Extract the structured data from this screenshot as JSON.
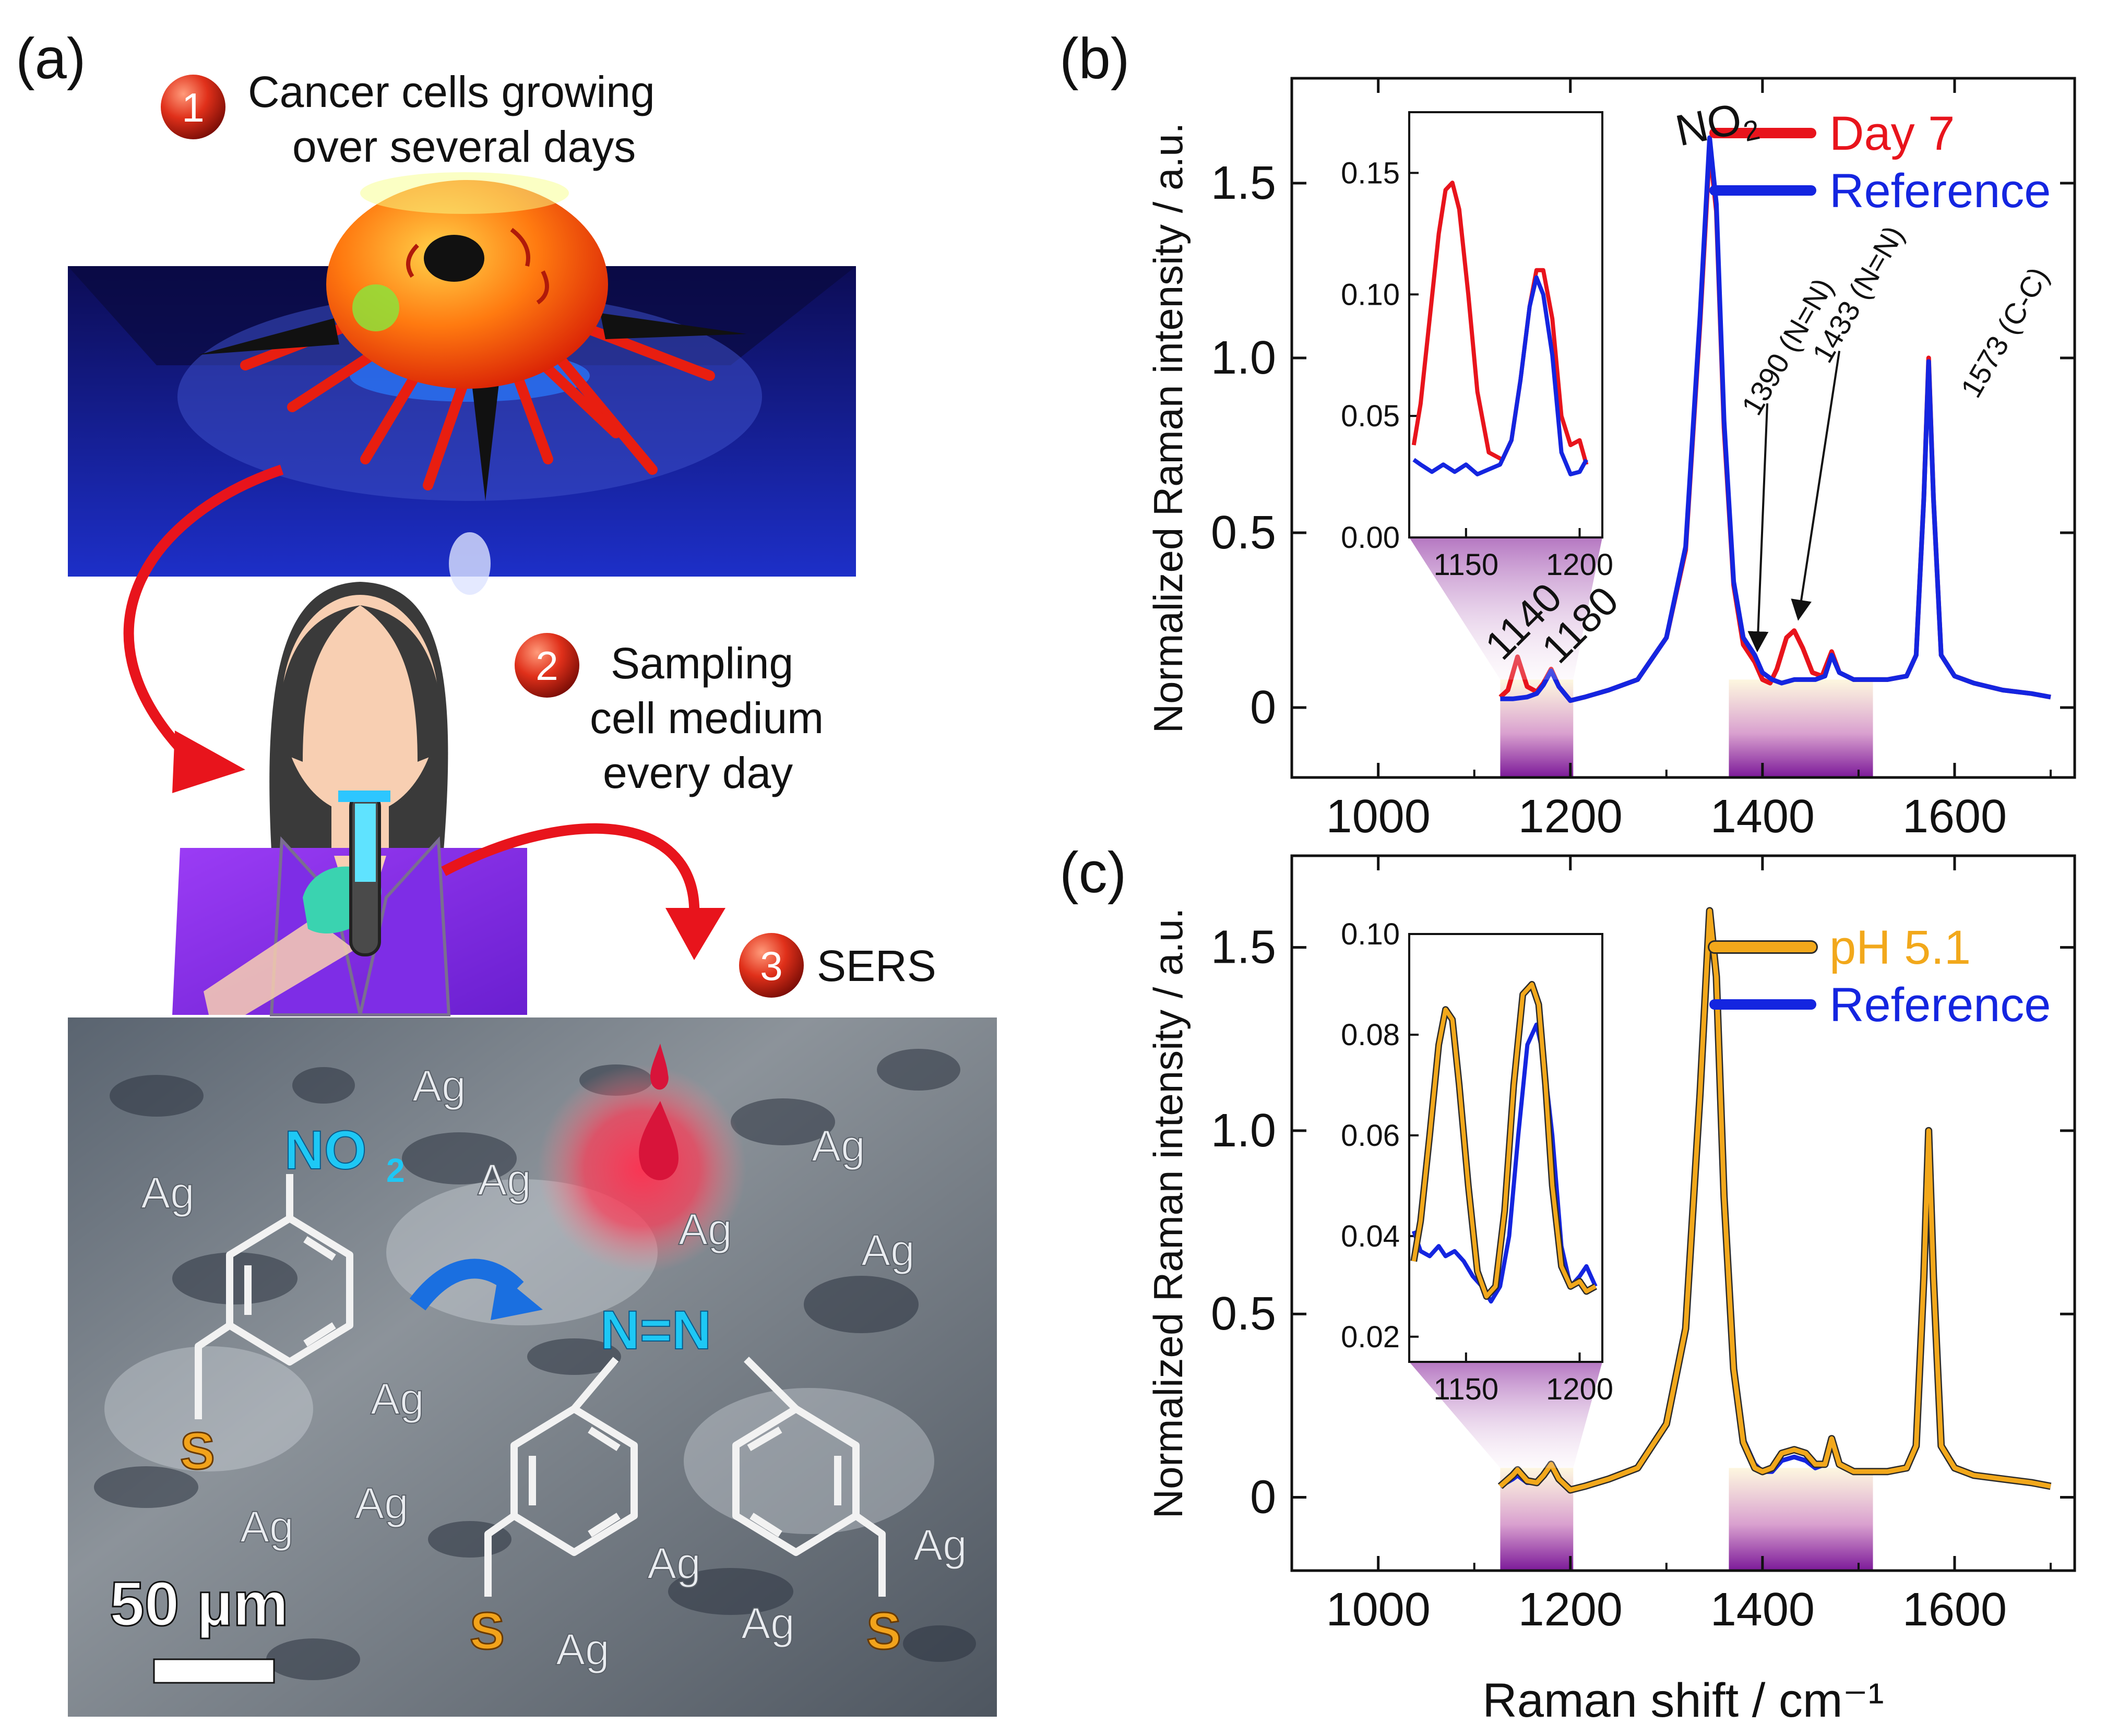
{
  "panel_a": {
    "label": "(a)",
    "steps": [
      {
        "num": "1",
        "lines": [
          "Cancer cells growing",
          "over several days"
        ]
      },
      {
        "num": "2",
        "lines": [
          "Sampling",
          "cell medium",
          "every day"
        ]
      },
      {
        "num": "3",
        "lines": [
          "SERS"
        ]
      }
    ],
    "micro": {
      "ag_labels": [
        "Ag",
        "Ag",
        "Ag",
        "Ag",
        "Ag",
        "Ag",
        "Ag",
        "Ag",
        "Ag",
        "Ag",
        "Ag",
        "Ag",
        "Ag",
        "Ag"
      ],
      "nitro_group": "NO",
      "nitro_sub": "2",
      "azo_group": "N=N",
      "sulfur": "S",
      "scale_bar": "50 µm"
    }
  },
  "colors": {
    "day7": "#e8141c",
    "reference": "#1425e0",
    "ph": "#f2a81b",
    "ph_dark": "#2a2a2a"
  },
  "chart_data": [
    {
      "panel_label": "(b)",
      "type": "line",
      "xlabel": "",
      "ylabel": "Normalized Raman intensity / a.u.",
      "xlim": [
        910,
        1725
      ],
      "ylim": [
        -0.2,
        1.8
      ],
      "xticks": [
        "1000",
        "1200",
        "1400",
        "1600"
      ],
      "xtick_values": [
        1000,
        1200,
        1400,
        1600
      ],
      "yticks": [
        "0",
        "0.5",
        "1.0",
        "1.5"
      ],
      "ytick_values": [
        0,
        0.5,
        1.0,
        1.5
      ],
      "highlight_bands": [
        [
          1127,
          1203
        ],
        [
          1365,
          1515
        ]
      ],
      "series": [
        {
          "name": "Day 7",
          "color": "#e8141c",
          "x": [
            1127,
            1135,
            1145,
            1155,
            1165,
            1172,
            1180,
            1188,
            1200,
            1215,
            1240,
            1270,
            1300,
            1320,
            1335,
            1345,
            1352,
            1360,
            1370,
            1380,
            1392,
            1400,
            1408,
            1415,
            1425,
            1433,
            1442,
            1452,
            1462,
            1472,
            1480,
            1495,
            1510,
            1530,
            1550,
            1560,
            1568,
            1573,
            1578,
            1586,
            1600,
            1620,
            1650,
            1680,
            1700
          ],
          "y": [
            0.03,
            0.05,
            0.145,
            0.06,
            0.045,
            0.07,
            0.11,
            0.06,
            0.02,
            0.03,
            0.05,
            0.08,
            0.2,
            0.45,
            1.1,
            1.6,
            1.42,
            0.8,
            0.35,
            0.18,
            0.13,
            0.08,
            0.07,
            0.11,
            0.2,
            0.22,
            0.17,
            0.1,
            0.09,
            0.16,
            0.1,
            0.08,
            0.08,
            0.08,
            0.09,
            0.15,
            0.6,
            1.0,
            0.6,
            0.15,
            0.09,
            0.07,
            0.05,
            0.04,
            0.03
          ]
        },
        {
          "name": "Reference",
          "color": "#1425e0",
          "x": [
            1127,
            1140,
            1155,
            1165,
            1172,
            1180,
            1188,
            1200,
            1215,
            1240,
            1270,
            1300,
            1320,
            1335,
            1345,
            1352,
            1360,
            1370,
            1380,
            1392,
            1400,
            1410,
            1420,
            1433,
            1445,
            1455,
            1465,
            1472,
            1480,
            1495,
            1510,
            1530,
            1550,
            1560,
            1568,
            1573,
            1578,
            1586,
            1600,
            1620,
            1650,
            1680,
            1700
          ],
          "y": [
            0.025,
            0.025,
            0.03,
            0.04,
            0.065,
            0.105,
            0.06,
            0.02,
            0.03,
            0.05,
            0.08,
            0.2,
            0.46,
            1.12,
            1.63,
            1.44,
            0.82,
            0.36,
            0.2,
            0.15,
            0.1,
            0.08,
            0.07,
            0.08,
            0.08,
            0.08,
            0.09,
            0.15,
            0.1,
            0.08,
            0.08,
            0.08,
            0.09,
            0.15,
            0.6,
            0.99,
            0.6,
            0.15,
            0.09,
            0.07,
            0.05,
            0.04,
            0.03
          ]
        }
      ],
      "annotations": [
        {
          "text": "NO",
          "sub": "2",
          "x": 1345,
          "y": 1.68
        },
        {
          "text": "1140",
          "x": 1140,
          "y": 0.18
        },
        {
          "text": "1180",
          "x": 1180,
          "y": 0.15
        },
        {
          "text": "1390 (N=N)",
          "x": 1390,
          "y": 0.3
        },
        {
          "text": "1433 (N=N)",
          "x": 1433,
          "y": 0.3
        },
        {
          "text": "1573 (C-C)",
          "x": 1573,
          "y": 0.3
        }
      ],
      "inset": {
        "xlim": [
          1125,
          1210
        ],
        "ylim": [
          0.0,
          0.175
        ],
        "xticks": [
          "1150",
          "1200"
        ],
        "xtick_values": [
          1150,
          1200
        ],
        "yticks": [
          "0.00",
          "0.05",
          "0.10",
          "0.15"
        ],
        "ytick_values": [
          0,
          0.05,
          0.1,
          0.15
        ],
        "series": [
          {
            "name": "Day 7",
            "color": "#e8141c",
            "x": [
              1127,
              1130,
              1134,
              1138,
              1141,
              1144,
              1147,
              1151,
              1155,
              1160,
              1166,
              1170,
              1174,
              1178,
              1181,
              1184,
              1188,
              1192,
              1196,
              1200,
              1203
            ],
            "y": [
              0.038,
              0.055,
              0.09,
              0.125,
              0.143,
              0.146,
              0.135,
              0.1,
              0.06,
              0.035,
              0.032,
              0.04,
              0.065,
              0.095,
              0.11,
              0.11,
              0.09,
              0.05,
              0.038,
              0.04,
              0.03
            ]
          },
          {
            "name": "Reference",
            "color": "#1425e0",
            "x": [
              1127,
              1130,
              1135,
              1140,
              1145,
              1150,
              1155,
              1160,
              1165,
              1170,
              1174,
              1178,
              1181,
              1184,
              1188,
              1192,
              1196,
              1200,
              1203
            ],
            "y": [
              0.032,
              0.03,
              0.027,
              0.03,
              0.027,
              0.03,
              0.026,
              0.028,
              0.03,
              0.04,
              0.065,
              0.095,
              0.107,
              0.1,
              0.075,
              0.035,
              0.026,
              0.027,
              0.032
            ]
          }
        ]
      },
      "legend": [
        {
          "label": "Day 7",
          "color": "#e8141c"
        },
        {
          "label": "Reference",
          "color": "#1425e0"
        }
      ],
      "legend_position": "top-right"
    },
    {
      "panel_label": "(c)",
      "type": "line",
      "xlabel": "Raman shift / cm⁻¹",
      "ylabel": "Normalized Raman intensity / a.u.",
      "xlim": [
        910,
        1725
      ],
      "ylim": [
        -0.2,
        1.75
      ],
      "xticks": [
        "1000",
        "1200",
        "1400",
        "1600"
      ],
      "xtick_values": [
        1000,
        1200,
        1400,
        1600
      ],
      "yticks": [
        "0",
        "0.5",
        "1.0",
        "1.5"
      ],
      "ytick_values": [
        0,
        0.5,
        1.0,
        1.5
      ],
      "highlight_bands": [
        [
          1127,
          1203
        ],
        [
          1365,
          1515
        ]
      ],
      "series": [
        {
          "name": "Reference",
          "color": "#1425e0",
          "x": [
            1127,
            1140,
            1145,
            1155,
            1165,
            1172,
            1180,
            1188,
            1200,
            1215,
            1240,
            1270,
            1300,
            1320,
            1335,
            1345,
            1352,
            1360,
            1370,
            1380,
            1392,
            1400,
            1410,
            1420,
            1433,
            1445,
            1455,
            1465,
            1472,
            1480,
            1495,
            1510,
            1530,
            1550,
            1560,
            1568,
            1573,
            1578,
            1586,
            1600,
            1620,
            1650,
            1680,
            1700
          ],
          "y": [
            0.03,
            0.05,
            0.06,
            0.04,
            0.04,
            0.06,
            0.085,
            0.05,
            0.02,
            0.03,
            0.05,
            0.08,
            0.2,
            0.45,
            1.08,
            1.58,
            1.4,
            0.8,
            0.35,
            0.16,
            0.09,
            0.07,
            0.07,
            0.1,
            0.11,
            0.1,
            0.08,
            0.09,
            0.15,
            0.09,
            0.07,
            0.07,
            0.07,
            0.08,
            0.14,
            0.58,
            0.98,
            0.58,
            0.14,
            0.08,
            0.06,
            0.05,
            0.04,
            0.03
          ]
        },
        {
          "name": "pH 5.1",
          "color": "#f2a81b",
          "x": [
            1127,
            1140,
            1145,
            1155,
            1165,
            1172,
            1180,
            1188,
            1200,
            1215,
            1240,
            1270,
            1300,
            1320,
            1335,
            1345,
            1352,
            1360,
            1370,
            1380,
            1392,
            1400,
            1410,
            1420,
            1433,
            1445,
            1455,
            1465,
            1472,
            1480,
            1495,
            1510,
            1530,
            1550,
            1560,
            1568,
            1573,
            1578,
            1586,
            1600,
            1620,
            1650,
            1680,
            1700
          ],
          "y": [
            0.03,
            0.06,
            0.075,
            0.045,
            0.04,
            0.06,
            0.09,
            0.05,
            0.02,
            0.03,
            0.05,
            0.08,
            0.2,
            0.46,
            1.1,
            1.6,
            1.42,
            0.82,
            0.35,
            0.15,
            0.08,
            0.07,
            0.08,
            0.12,
            0.13,
            0.12,
            0.09,
            0.09,
            0.16,
            0.09,
            0.07,
            0.07,
            0.07,
            0.08,
            0.14,
            0.6,
            1.0,
            0.6,
            0.14,
            0.08,
            0.06,
            0.05,
            0.04,
            0.03
          ]
        }
      ],
      "inset": {
        "xlim": [
          1125,
          1210
        ],
        "ylim": [
          0.015,
          0.1
        ],
        "xticks": [
          "1150",
          "1200"
        ],
        "xtick_values": [
          1150,
          1200
        ],
        "yticks": [
          "0.02",
          "0.04",
          "0.06",
          "0.08",
          "0.10"
        ],
        "ytick_values": [
          0.02,
          0.04,
          0.06,
          0.08,
          0.1
        ],
        "series": [
          {
            "name": "Reference",
            "color": "#1425e0",
            "x": [
              1127,
              1130,
              1134,
              1138,
              1141,
              1145,
              1149,
              1153,
              1157,
              1161,
              1165,
              1169,
              1173,
              1177,
              1181,
              1184,
              1188,
              1192,
              1196,
              1200,
              1203,
              1207
            ],
            "y": [
              0.041,
              0.037,
              0.036,
              0.038,
              0.036,
              0.037,
              0.035,
              0.032,
              0.03,
              0.027,
              0.03,
              0.04,
              0.06,
              0.078,
              0.082,
              0.076,
              0.06,
              0.038,
              0.03,
              0.032,
              0.034,
              0.03
            ]
          },
          {
            "name": "pH 5.1",
            "color": "#f2a81b",
            "x": [
              1127,
              1130,
              1134,
              1138,
              1141,
              1144,
              1147,
              1151,
              1155,
              1159,
              1163,
              1167,
              1171,
              1175,
              1179,
              1182,
              1185,
              1188,
              1192,
              1196,
              1200,
              1203,
              1207
            ],
            "y": [
              0.035,
              0.043,
              0.06,
              0.078,
              0.085,
              0.083,
              0.07,
              0.05,
              0.033,
              0.028,
              0.03,
              0.045,
              0.07,
              0.088,
              0.09,
              0.086,
              0.07,
              0.05,
              0.034,
              0.03,
              0.031,
              0.029,
              0.03
            ]
          }
        ]
      },
      "legend": [
        {
          "label": "pH 5.1",
          "color": "#f2a81b"
        },
        {
          "label": "Reference",
          "color": "#1425e0"
        }
      ],
      "legend_position": "top-right"
    }
  ]
}
